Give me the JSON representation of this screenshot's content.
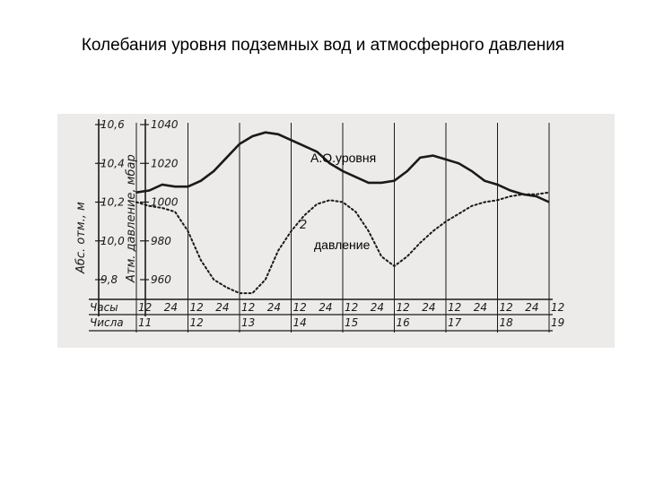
{
  "page": {
    "title": "Колебания уровня подземных вод и атмосферного давления"
  },
  "colors": {
    "figure_bg": "#ecebea",
    "ink": "#1a1a1a"
  },
  "chart_data": {
    "type": "line",
    "title": "Колебания уровня подземных вод и атмосферного давления",
    "left_axis": {
      "label": "Абс. отм., м",
      "ticks": [
        "10,6",
        "10,4",
        "10,2",
        "10,0",
        "9,8"
      ],
      "ylim": [
        9.7,
        10.6
      ]
    },
    "right_axis": {
      "label": "Атм. давление, мбар",
      "ticks": [
        "1040",
        "1020",
        "1000",
        "980",
        "960"
      ],
      "ylim": [
        950,
        1040
      ]
    },
    "x_hours": [
      "12",
      "24",
      "12",
      "24",
      "12",
      "24",
      "12",
      "24",
      "12",
      "24",
      "12",
      "24",
      "12",
      "24",
      "12",
      "24",
      "12"
    ],
    "x_days": [
      "11",
      "12",
      "13",
      "14",
      "15",
      "16",
      "17",
      "18",
      "19"
    ],
    "row_labels": {
      "hours": "Часы",
      "days": "Числа"
    },
    "series": [
      {
        "name": "А.О.уровня",
        "style": "solid",
        "x": [
          0.0,
          0.25,
          0.5,
          0.75,
          1.0,
          1.25,
          1.5,
          1.75,
          2.0,
          2.25,
          2.5,
          2.75,
          3.0,
          3.25,
          3.5,
          3.75,
          4.0,
          4.25,
          4.5,
          4.75,
          5.0,
          5.25,
          5.5,
          5.75,
          6.0,
          6.25,
          6.5,
          6.75,
          7.0,
          7.25,
          7.5,
          7.75,
          8.0
        ],
        "values": [
          10.25,
          10.26,
          10.29,
          10.28,
          10.28,
          10.31,
          10.36,
          10.43,
          10.5,
          10.54,
          10.56,
          10.55,
          10.52,
          10.49,
          10.46,
          10.4,
          10.36,
          10.33,
          10.3,
          10.3,
          10.31,
          10.36,
          10.43,
          10.44,
          10.42,
          10.4,
          10.36,
          10.31,
          10.29,
          10.26,
          10.24,
          10.23,
          10.2
        ]
      },
      {
        "name": "давление",
        "style": "dotted",
        "x": [
          0.0,
          0.25,
          0.5,
          0.75,
          1.0,
          1.25,
          1.5,
          1.75,
          2.0,
          2.25,
          2.5,
          2.75,
          3.0,
          3.25,
          3.5,
          3.75,
          4.0,
          4.25,
          4.5,
          4.75,
          5.0,
          5.25,
          5.5,
          5.75,
          6.0,
          6.25,
          6.5,
          6.75,
          7.0,
          7.25,
          7.5,
          7.75,
          8.0
        ],
        "values": [
          1000,
          998,
          997,
          995,
          985,
          970,
          960,
          956,
          953,
          953,
          960,
          975,
          985,
          993,
          999,
          1001,
          1000,
          995,
          985,
          972,
          967,
          972,
          979,
          985,
          990,
          994,
          998,
          1000,
          1001,
          1003,
          1004,
          1004,
          1005
        ]
      }
    ],
    "annotations": [
      "А.О.уровня",
      "давление",
      "2"
    ]
  }
}
